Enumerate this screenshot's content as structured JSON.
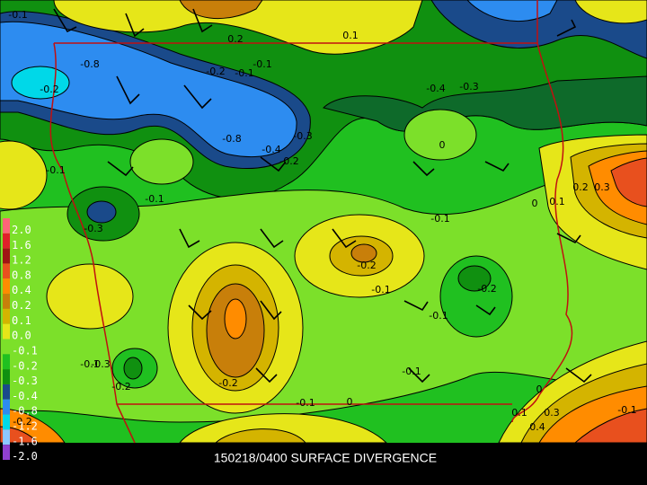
{
  "caption": "150218/0400 SURFACE DIVERGENCE",
  "colorbar": [
    {
      "label": "2.0",
      "color": "#ff6478"
    },
    {
      "label": "1.6",
      "color": "#e0202a"
    },
    {
      "label": "1.2",
      "color": "#a01414"
    },
    {
      "label": "0.8",
      "color": "#e8501e"
    },
    {
      "label": "0.4",
      "color": "#ff8c00"
    },
    {
      "label": "0.2",
      "color": "#c87f0a"
    },
    {
      "label": "0.1",
      "color": "#d4b400"
    },
    {
      "label": "0.0",
      "color": "#e6e619"
    },
    {
      "label": "-0.1",
      "color": "#7ce02a"
    },
    {
      "label": "-0.2",
      "color": "#20c020"
    },
    {
      "label": "-0.3",
      "color": "#109010"
    },
    {
      "label": "-0.4",
      "color": "#1a4a8a"
    },
    {
      "label": "-0.8",
      "color": "#2d8cf0"
    },
    {
      "label": "-1.2",
      "color": "#00d8e8"
    },
    {
      "label": "-1.6",
      "color": "#8cc8ff"
    },
    {
      "label": "-2.0",
      "color": "#9040d0"
    }
  ],
  "contour_labels": [
    "-0.1",
    "0.2",
    "0.1",
    "-0.8",
    "-0.2",
    "-0.2",
    "-0.1",
    "-0.1",
    "-0.4",
    "-0.3",
    "-0.8",
    "-0.4",
    "-0.3",
    "-0.2",
    "0",
    "-0.1",
    "-0.1",
    "-0.3",
    "-0.1",
    "0.2",
    "0.3",
    "0.1",
    "0",
    "-0.2",
    "-0.1",
    "-0.2",
    "-0.1",
    "-0.3",
    "-0.2",
    "-0.1",
    "-0.2",
    "-0.1",
    "0",
    "-0.1",
    "0",
    "0.1",
    "0.3",
    "0.4",
    "-0.1",
    "-0.2"
  ]
}
